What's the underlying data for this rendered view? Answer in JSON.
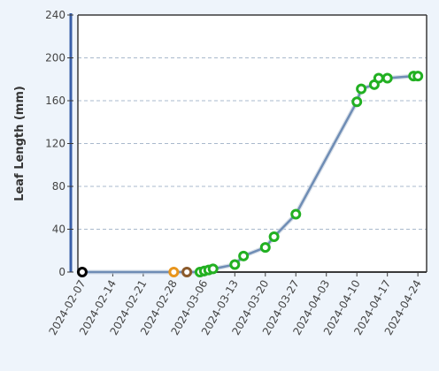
{
  "chart_data": {
    "type": "scatter",
    "title": "",
    "xlabel": "",
    "ylabel": "Leaf Length (mm)",
    "ylim": [
      0,
      240
    ],
    "xlim": [
      "2024-02-06",
      "2024-04-26"
    ],
    "y_ticks": [
      0,
      40,
      80,
      120,
      160,
      200,
      240
    ],
    "x_ticks": [
      "2024-02-07",
      "2024-02-14",
      "2024-02-21",
      "2024-02-28",
      "2024-03-06",
      "2024-03-13",
      "2024-03-20",
      "2024-03-27",
      "2024-04-03",
      "2024-04-10",
      "2024-04-17",
      "2024-04-24"
    ],
    "grid": "horizontal-dashed",
    "line_color": "#6f8db5",
    "plot_background": "#ffffff",
    "points": [
      {
        "date": "2024-02-07",
        "value": 0,
        "color": "#000000"
      },
      {
        "date": "2024-02-28",
        "value": 0,
        "color": "#e8951c"
      },
      {
        "date": "2024-03-02",
        "value": 0,
        "color": "#8b5a2b"
      },
      {
        "date": "2024-03-05",
        "value": 0,
        "color": "#22b022"
      },
      {
        "date": "2024-03-06",
        "value": 1,
        "color": "#22b022"
      },
      {
        "date": "2024-03-07",
        "value": 2,
        "color": "#22b022"
      },
      {
        "date": "2024-03-08",
        "value": 3,
        "color": "#22b022"
      },
      {
        "date": "2024-03-13",
        "value": 7,
        "color": "#22b022"
      },
      {
        "date": "2024-03-15",
        "value": 15,
        "color": "#22b022"
      },
      {
        "date": "2024-03-20",
        "value": 23,
        "color": "#22b022"
      },
      {
        "date": "2024-03-22",
        "value": 33,
        "color": "#22b022"
      },
      {
        "date": "2024-03-27",
        "value": 54,
        "color": "#22b022"
      },
      {
        "date": "2024-04-10",
        "value": 159,
        "color": "#22b022"
      },
      {
        "date": "2024-04-11",
        "value": 171,
        "color": "#22b022"
      },
      {
        "date": "2024-04-14",
        "value": 175,
        "color": "#22b022"
      },
      {
        "date": "2024-04-15",
        "value": 181,
        "color": "#22b022"
      },
      {
        "date": "2024-04-17",
        "value": 181,
        "color": "#22b022"
      },
      {
        "date": "2024-04-23",
        "value": 183,
        "color": "#22b022"
      },
      {
        "date": "2024-04-24",
        "value": 183,
        "color": "#22b022"
      }
    ]
  }
}
